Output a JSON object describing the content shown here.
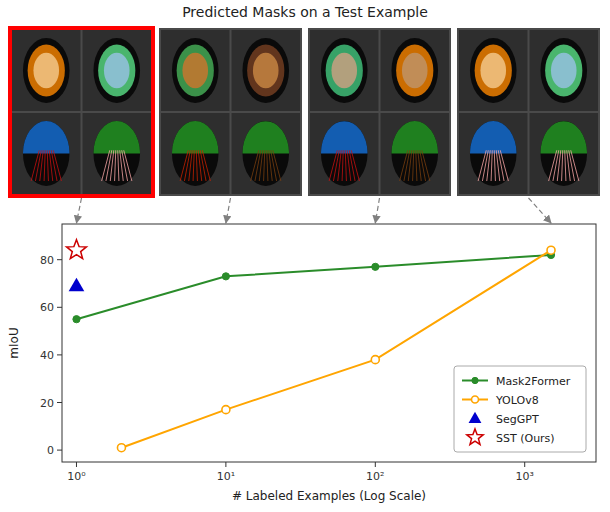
{
  "chart_data": {
    "type": "line",
    "title": "Predicted Masks on a Test Example",
    "x_label": "# Labeled Examples (Log Scale)",
    "y_label": "mIoU",
    "log": "x",
    "xlim": [
      0.8,
      3000
    ],
    "ylim": [
      -5,
      95
    ],
    "xticks": [
      {
        "value": 1,
        "label": "10⁰"
      },
      {
        "value": 10,
        "label": "10¹"
      },
      {
        "value": 100,
        "label": "10²"
      },
      {
        "value": 1000,
        "label": "10³"
      }
    ],
    "yticks": [
      0,
      20,
      40,
      60,
      80
    ],
    "grid": false,
    "legend": "lower right",
    "series": [
      {
        "name": "Mask2Former",
        "type": "line",
        "color": "#2a8c2a",
        "marker": "circle",
        "line_style": "solid",
        "x": [
          1,
          10,
          100,
          1500
        ],
        "values": [
          55,
          73,
          77,
          82
        ]
      },
      {
        "name": "YOLOv8",
        "type": "line",
        "color": "#ffa500",
        "marker": "open_circle",
        "line_style": "solid",
        "x": [
          2,
          10,
          100,
          1500
        ],
        "values": [
          1,
          17,
          38,
          84
        ]
      },
      {
        "name": "SegGPT",
        "type": "scatter",
        "color": "#0000cd",
        "marker": "triangle",
        "x": [
          1
        ],
        "values": [
          69
        ]
      },
      {
        "name": "SST (Ours)",
        "type": "scatter",
        "color": "#cc0000",
        "marker": "open_star",
        "x": [
          1
        ],
        "values": [
          84
        ]
      }
    ]
  }
}
